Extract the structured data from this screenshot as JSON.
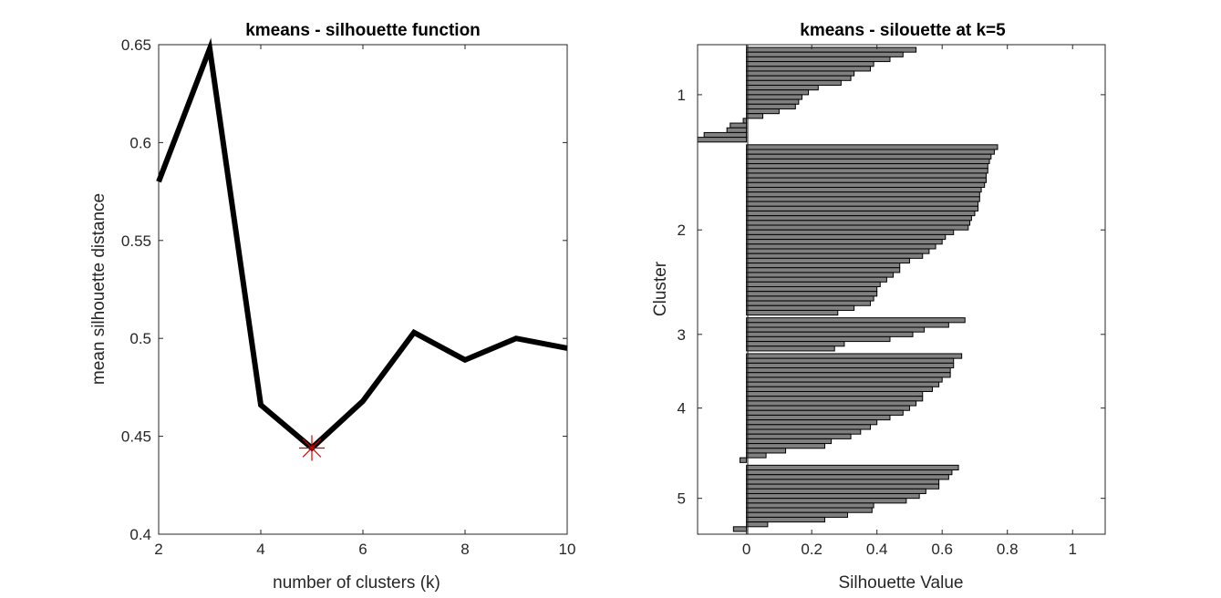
{
  "colors": {
    "line": "#000000",
    "marker": "#d40000",
    "bar_fill": "#808080",
    "bar_edge": "#000000",
    "axis": "#262626"
  },
  "chart_data": [
    {
      "type": "line",
      "title": "kmeans - silhouette function",
      "xlabel": "number of clusters (k)",
      "ylabel": "mean silhouette distance",
      "xlim": [
        2,
        10
      ],
      "ylim": [
        0.4,
        0.65
      ],
      "xticks": [
        2,
        4,
        6,
        8,
        10
      ],
      "yticks": [
        0.4,
        0.45,
        0.5,
        0.55,
        0.6,
        0.65
      ],
      "xtick_labels": [
        "2",
        "4",
        "6",
        "8",
        "10"
      ],
      "ytick_labels": [
        "0.4",
        "0.45",
        "0.5",
        "0.55",
        "0.6",
        "0.65"
      ],
      "grid": false,
      "series": [
        {
          "x": [
            2,
            3,
            4,
            5,
            6,
            7,
            8,
            9,
            10
          ],
          "y": [
            0.58,
            0.648,
            0.466,
            0.444,
            0.468,
            0.503,
            0.489,
            0.5,
            0.495
          ]
        }
      ],
      "marker": {
        "x": 5,
        "y": 0.444,
        "symbol": "asterisk"
      }
    },
    {
      "type": "bar",
      "orientation": "horizontal",
      "title": "kmeans - silouette at k=5",
      "xlabel": "Silhouette Value",
      "ylabel": "Cluster",
      "xlim": [
        -0.15,
        1.1
      ],
      "xticks": [
        0,
        0.2,
        0.4,
        0.6,
        0.8,
        1
      ],
      "xtick_labels": [
        "0",
        "0.2",
        "0.4",
        "0.6",
        "0.8",
        "1"
      ],
      "ytick_labels": [
        "1",
        "2",
        "3",
        "4",
        "5"
      ],
      "grid": false,
      "clusters": [
        {
          "label": "1",
          "values": [
            0.52,
            0.48,
            0.44,
            0.39,
            0.38,
            0.33,
            0.32,
            0.29,
            0.22,
            0.19,
            0.17,
            0.16,
            0.15,
            0.1,
            0.05,
            -0.01,
            -0.05,
            -0.06,
            -0.13,
            -0.15
          ]
        },
        {
          "label": "2",
          "values": [
            0.77,
            0.76,
            0.75,
            0.745,
            0.74,
            0.74,
            0.735,
            0.735,
            0.73,
            0.72,
            0.715,
            0.715,
            0.71,
            0.71,
            0.7,
            0.69,
            0.685,
            0.68,
            0.635,
            0.61,
            0.6,
            0.58,
            0.56,
            0.54,
            0.5,
            0.47,
            0.47,
            0.45,
            0.43,
            0.41,
            0.4,
            0.4,
            0.39,
            0.38,
            0.33,
            0.28
          ]
        },
        {
          "label": "3",
          "values": [
            0.67,
            0.62,
            0.545,
            0.51,
            0.44,
            0.3,
            0.27
          ]
        },
        {
          "label": "4",
          "values": [
            0.66,
            0.635,
            0.635,
            0.625,
            0.625,
            0.6,
            0.59,
            0.57,
            0.54,
            0.54,
            0.52,
            0.5,
            0.48,
            0.44,
            0.4,
            0.38,
            0.35,
            0.32,
            0.26,
            0.24,
            0.12,
            0.06,
            -0.02
          ]
        },
        {
          "label": "5",
          "values": [
            0.65,
            0.63,
            0.62,
            0.59,
            0.59,
            0.55,
            0.53,
            0.49,
            0.39,
            0.385,
            0.31,
            0.24,
            0.065,
            -0.04
          ]
        }
      ]
    }
  ]
}
